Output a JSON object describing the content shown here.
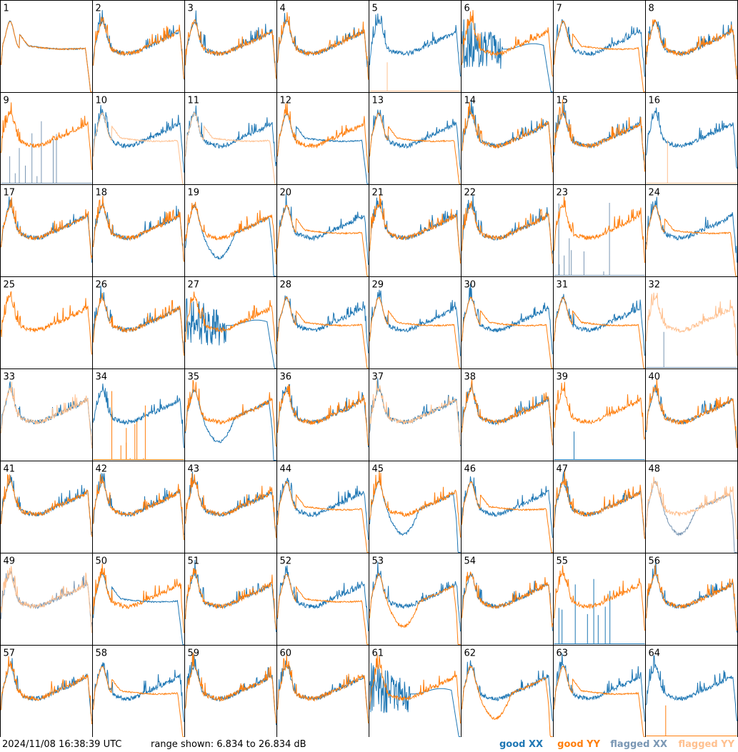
{
  "footer": {
    "timestamp": "2024/11/08 16:38:39 UTC",
    "range_text": "range shown: 6.834 to 26.834 dB"
  },
  "legend": [
    {
      "label": "good XX",
      "color": "#1f77b4"
    },
    {
      "label": "good YY",
      "color": "#ff7f0e"
    },
    {
      "label": "flagged XX",
      "color": "#7a97b4"
    },
    {
      "label": "flagged YY",
      "color": "#ffc08f"
    }
  ],
  "chart_data": {
    "type": "line",
    "grid_layout": "8 columns x 8 rows of small panels",
    "y_range_db": [
      6.834,
      26.834
    ],
    "x_axis": "channel (unlabeled)",
    "series_names": [
      "good XX",
      "good YY",
      "flagged XX",
      "flagged YY"
    ],
    "panels": [
      {
        "id": 1,
        "xx": "good",
        "yy": "good",
        "xx_shape": "droop",
        "yy_shape": "droop"
      },
      {
        "id": 2,
        "xx": "good",
        "yy": "good",
        "xx_shape": "normal",
        "yy_shape": "normal"
      },
      {
        "id": 3,
        "xx": "good",
        "yy": "good",
        "xx_shape": "normal",
        "yy_shape": "normal"
      },
      {
        "id": 4,
        "xx": "good",
        "yy": "good",
        "xx_shape": "normal",
        "yy_shape": "normal"
      },
      {
        "id": 5,
        "xx": "good",
        "yy": "flagged",
        "xx_shape": "normal",
        "yy_shape": "spike"
      },
      {
        "id": 6,
        "xx": "good",
        "yy": "good",
        "xx_shape": "wild",
        "yy_shape": "normal"
      },
      {
        "id": 7,
        "xx": "good",
        "yy": "good",
        "xx_shape": "normal",
        "yy_shape": "droop"
      },
      {
        "id": 8,
        "xx": "good",
        "yy": "good",
        "xx_shape": "normal",
        "yy_shape": "normal"
      },
      {
        "id": 9,
        "xx": "flagged",
        "yy": "good",
        "xx_shape": "spikes",
        "yy_shape": "normal"
      },
      {
        "id": 10,
        "xx": "good",
        "yy": "flagged",
        "xx_shape": "normal",
        "yy_shape": "droop"
      },
      {
        "id": 11,
        "xx": "good",
        "yy": "flagged",
        "xx_shape": "normal",
        "yy_shape": "droop"
      },
      {
        "id": 12,
        "xx": "good",
        "yy": "good",
        "xx_shape": "droop",
        "yy_shape": "normal"
      },
      {
        "id": 13,
        "xx": "good",
        "yy": "good",
        "xx_shape": "normal",
        "yy_shape": "droop"
      },
      {
        "id": 14,
        "xx": "good",
        "yy": "good",
        "xx_shape": "normal",
        "yy_shape": "normal"
      },
      {
        "id": 15,
        "xx": "good",
        "yy": "good",
        "xx_shape": "normal",
        "yy_shape": "normal"
      },
      {
        "id": 16,
        "xx": "good",
        "yy": "flagged",
        "xx_shape": "normal",
        "yy_shape": "spike"
      },
      {
        "id": 17,
        "xx": "good",
        "yy": "good",
        "xx_shape": "normal",
        "yy_shape": "normal"
      },
      {
        "id": 18,
        "xx": "good",
        "yy": "good",
        "xx_shape": "normal",
        "yy_shape": "normal"
      },
      {
        "id": 19,
        "xx": "good",
        "yy": "good",
        "xx_shape": "dip",
        "yy_shape": "normal"
      },
      {
        "id": 20,
        "xx": "good",
        "yy": "good",
        "xx_shape": "normal",
        "yy_shape": "droop"
      },
      {
        "id": 21,
        "xx": "good",
        "yy": "good",
        "xx_shape": "normal",
        "yy_shape": "normal"
      },
      {
        "id": 22,
        "xx": "good",
        "yy": "good",
        "xx_shape": "normal",
        "yy_shape": "normal"
      },
      {
        "id": 23,
        "xx": "flagged",
        "yy": "good",
        "xx_shape": "spikes",
        "yy_shape": "normal"
      },
      {
        "id": 24,
        "xx": "good",
        "yy": "good",
        "xx_shape": "normal",
        "yy_shape": "droop"
      },
      {
        "id": 25,
        "xx": "none",
        "yy": "good",
        "xx_shape": "normal",
        "yy_shape": "normal"
      },
      {
        "id": 26,
        "xx": "good",
        "yy": "good",
        "xx_shape": "normal",
        "yy_shape": "normal"
      },
      {
        "id": 27,
        "xx": "good",
        "yy": "good",
        "xx_shape": "wild",
        "yy_shape": "normal"
      },
      {
        "id": 28,
        "xx": "good",
        "yy": "good",
        "xx_shape": "normal",
        "yy_shape": "droop"
      },
      {
        "id": 29,
        "xx": "good",
        "yy": "good",
        "xx_shape": "normal",
        "yy_shape": "droop"
      },
      {
        "id": 30,
        "xx": "good",
        "yy": "good",
        "xx_shape": "normal",
        "yy_shape": "droop"
      },
      {
        "id": 31,
        "xx": "good",
        "yy": "good",
        "xx_shape": "normal",
        "yy_shape": "droop"
      },
      {
        "id": 32,
        "xx": "flagged",
        "yy": "flagged",
        "xx_shape": "spike",
        "yy_shape": "normal"
      },
      {
        "id": 33,
        "xx": "good",
        "yy": "flagged",
        "xx_shape": "normal",
        "yy_shape": "normal"
      },
      {
        "id": 34,
        "xx": "good",
        "yy": "good",
        "xx_shape": "normal",
        "yy_shape": "spikes"
      },
      {
        "id": 35,
        "xx": "good",
        "yy": "good",
        "xx_shape": "dip",
        "yy_shape": "normal"
      },
      {
        "id": 36,
        "xx": "good",
        "yy": "good",
        "xx_shape": "normal",
        "yy_shape": "normal"
      },
      {
        "id": 37,
        "xx": "good",
        "yy": "flagged",
        "xx_shape": "normal",
        "yy_shape": "normal"
      },
      {
        "id": 38,
        "xx": "good",
        "yy": "good",
        "xx_shape": "normal",
        "yy_shape": "normal"
      },
      {
        "id": 39,
        "xx": "good",
        "yy": "good",
        "xx_shape": "spike",
        "yy_shape": "normal"
      },
      {
        "id": 40,
        "xx": "good",
        "yy": "good",
        "xx_shape": "normal",
        "yy_shape": "normal"
      },
      {
        "id": 41,
        "xx": "good",
        "yy": "good",
        "xx_shape": "normal",
        "yy_shape": "normal"
      },
      {
        "id": 42,
        "xx": "good",
        "yy": "good",
        "xx_shape": "normal",
        "yy_shape": "normal"
      },
      {
        "id": 43,
        "xx": "good",
        "yy": "good",
        "xx_shape": "normal",
        "yy_shape": "normal"
      },
      {
        "id": 44,
        "xx": "good",
        "yy": "good",
        "xx_shape": "normal",
        "yy_shape": "droop"
      },
      {
        "id": 45,
        "xx": "good",
        "yy": "good",
        "xx_shape": "dip",
        "yy_shape": "normal"
      },
      {
        "id": 46,
        "xx": "good",
        "yy": "good",
        "xx_shape": "normal",
        "yy_shape": "droop"
      },
      {
        "id": 47,
        "xx": "good",
        "yy": "good",
        "xx_shape": "normal",
        "yy_shape": "normal"
      },
      {
        "id": 48,
        "xx": "flagged",
        "yy": "flagged",
        "xx_shape": "dip",
        "yy_shape": "normal"
      },
      {
        "id": 49,
        "xx": "flagged",
        "yy": "flagged",
        "xx_shape": "normal",
        "yy_shape": "normal"
      },
      {
        "id": 50,
        "xx": "good",
        "yy": "good",
        "xx_shape": "droop",
        "yy_shape": "normal"
      },
      {
        "id": 51,
        "xx": "good",
        "yy": "good",
        "xx_shape": "normal",
        "yy_shape": "normal"
      },
      {
        "id": 52,
        "xx": "good",
        "yy": "good",
        "xx_shape": "normal",
        "yy_shape": "droop"
      },
      {
        "id": 53,
        "xx": "good",
        "yy": "good",
        "xx_shape": "normal",
        "yy_shape": "dip"
      },
      {
        "id": 54,
        "xx": "good",
        "yy": "good",
        "xx_shape": "normal",
        "yy_shape": "normal"
      },
      {
        "id": 55,
        "xx": "good",
        "yy": "good",
        "xx_shape": "spikes",
        "yy_shape": "normal"
      },
      {
        "id": 56,
        "xx": "good",
        "yy": "good",
        "xx_shape": "normal",
        "yy_shape": "normal"
      },
      {
        "id": 57,
        "xx": "good",
        "yy": "good",
        "xx_shape": "normal",
        "yy_shape": "normal"
      },
      {
        "id": 58,
        "xx": "good",
        "yy": "good",
        "xx_shape": "normal",
        "yy_shape": "droop"
      },
      {
        "id": 59,
        "xx": "good",
        "yy": "good",
        "xx_shape": "normal",
        "yy_shape": "normal"
      },
      {
        "id": 60,
        "xx": "good",
        "yy": "good",
        "xx_shape": "normal",
        "yy_shape": "normal"
      },
      {
        "id": 61,
        "xx": "good",
        "yy": "good",
        "xx_shape": "wild",
        "yy_shape": "normal"
      },
      {
        "id": 62,
        "xx": "good",
        "yy": "good",
        "xx_shape": "normal",
        "yy_shape": "dip"
      },
      {
        "id": 63,
        "xx": "good",
        "yy": "good",
        "xx_shape": "normal",
        "yy_shape": "droop"
      },
      {
        "id": 64,
        "xx": "good",
        "yy": "good",
        "xx_shape": "normal",
        "yy_shape": "spike"
      }
    ]
  }
}
